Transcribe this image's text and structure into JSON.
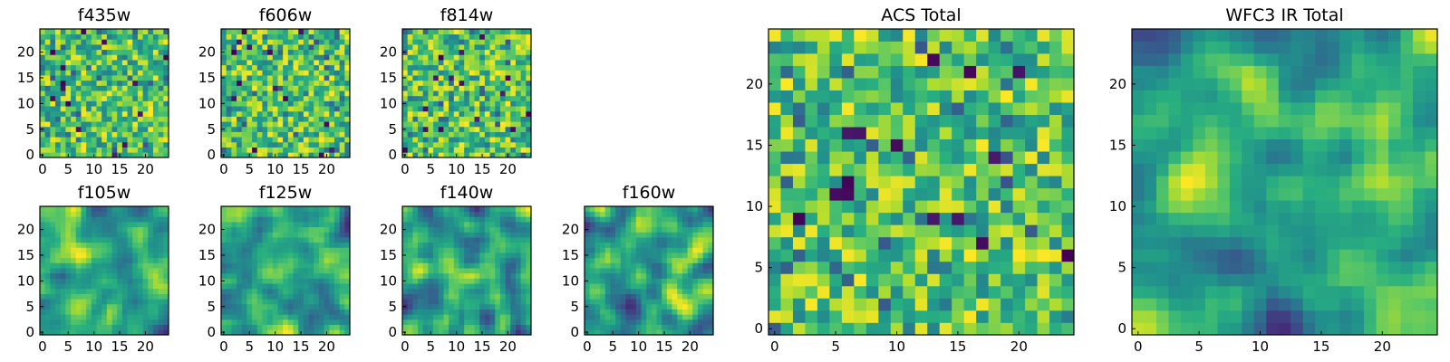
{
  "chart_data": [
    {
      "type": "heatmap",
      "title": "f435w",
      "grid": [
        25,
        25
      ],
      "xlim": [
        0,
        25
      ],
      "ylim": [
        0,
        25
      ],
      "xticks": [
        0,
        5,
        10,
        15,
        20
      ],
      "yticks": [
        0,
        5,
        10,
        15,
        20
      ],
      "xtick_labels": [
        "0",
        "5",
        "10",
        "15",
        "20"
      ],
      "ytick_labels": [
        "0",
        "5",
        "10",
        "15",
        "20"
      ],
      "colormap": "viridis",
      "texture": "speckled",
      "seed": 11
    },
    {
      "type": "heatmap",
      "title": "f606w",
      "grid": [
        25,
        25
      ],
      "xlim": [
        0,
        25
      ],
      "ylim": [
        0,
        25
      ],
      "xticks": [
        0,
        5,
        10,
        15,
        20
      ],
      "yticks": [
        0,
        5,
        10,
        15,
        20
      ],
      "xtick_labels": [
        "0",
        "5",
        "10",
        "15",
        "20"
      ],
      "ytick_labels": [
        "0",
        "5",
        "10",
        "15",
        "20"
      ],
      "colormap": "viridis",
      "texture": "speckled",
      "seed": 23
    },
    {
      "type": "heatmap",
      "title": "f814w",
      "grid": [
        25,
        25
      ],
      "xlim": [
        0,
        25
      ],
      "ylim": [
        0,
        25
      ],
      "xticks": [
        0,
        5,
        10,
        15,
        20
      ],
      "yticks": [
        0,
        5,
        10,
        15,
        20
      ],
      "xtick_labels": [
        "0",
        "5",
        "10",
        "15",
        "20"
      ],
      "ytick_labels": [
        "0",
        "5",
        "10",
        "15",
        "20"
      ],
      "colormap": "viridis",
      "texture": "speckled",
      "seed": 37
    },
    {
      "type": "heatmap",
      "title": "f105w",
      "grid": [
        25,
        25
      ],
      "xlim": [
        0,
        25
      ],
      "ylim": [
        0,
        25
      ],
      "xticks": [
        0,
        5,
        10,
        15,
        20
      ],
      "yticks": [
        0,
        5,
        10,
        15,
        20
      ],
      "xtick_labels": [
        "0",
        "5",
        "10",
        "15",
        "20"
      ],
      "ytick_labels": [
        "0",
        "5",
        "10",
        "15",
        "20"
      ],
      "colormap": "viridis",
      "texture": "smooth",
      "seed": 41
    },
    {
      "type": "heatmap",
      "title": "f125w",
      "grid": [
        25,
        25
      ],
      "xlim": [
        0,
        25
      ],
      "ylim": [
        0,
        25
      ],
      "xticks": [
        0,
        5,
        10,
        15,
        20
      ],
      "yticks": [
        0,
        5,
        10,
        15,
        20
      ],
      "xtick_labels": [
        "0",
        "5",
        "10",
        "15",
        "20"
      ],
      "ytick_labels": [
        "0",
        "5",
        "10",
        "15",
        "20"
      ],
      "colormap": "viridis",
      "texture": "smooth",
      "seed": 53
    },
    {
      "type": "heatmap",
      "title": "f140w",
      "grid": [
        25,
        25
      ],
      "xlim": [
        0,
        25
      ],
      "ylim": [
        0,
        25
      ],
      "xticks": [
        0,
        5,
        10,
        15,
        20
      ],
      "yticks": [
        0,
        5,
        10,
        15,
        20
      ],
      "xtick_labels": [
        "0",
        "5",
        "10",
        "15",
        "20"
      ],
      "ytick_labels": [
        "0",
        "5",
        "10",
        "15",
        "20"
      ],
      "colormap": "viridis",
      "texture": "smooth",
      "seed": 67
    },
    {
      "type": "heatmap",
      "title": "f160w",
      "grid": [
        25,
        25
      ],
      "xlim": [
        0,
        25
      ],
      "ylim": [
        0,
        25
      ],
      "xticks": [
        0,
        5,
        10,
        15,
        20
      ],
      "yticks": [
        0,
        5,
        10,
        15,
        20
      ],
      "xtick_labels": [
        "0",
        "5",
        "10",
        "15",
        "20"
      ],
      "ytick_labels": [
        "0",
        "5",
        "10",
        "15",
        "20"
      ],
      "colormap": "viridis",
      "texture": "smooth",
      "seed": 79
    },
    {
      "type": "heatmap",
      "title": "ACS Total",
      "grid": [
        25,
        25
      ],
      "xlim": [
        0,
        25
      ],
      "ylim": [
        0,
        25
      ],
      "xticks": [
        0,
        5,
        10,
        15,
        20
      ],
      "yticks": [
        0,
        5,
        10,
        15,
        20
      ],
      "xtick_labels": [
        "0",
        "5",
        "10",
        "15",
        "20"
      ],
      "ytick_labels": [
        "0",
        "5",
        "10",
        "15",
        "20"
      ],
      "colormap": "viridis",
      "texture": "speckled",
      "seed": 97
    },
    {
      "type": "heatmap",
      "title": "WFC3 IR Total",
      "grid": [
        25,
        25
      ],
      "xlim": [
        0,
        25
      ],
      "ylim": [
        0,
        25
      ],
      "xticks": [
        0,
        5,
        10,
        15,
        20
      ],
      "yticks": [
        0,
        5,
        10,
        15,
        20
      ],
      "xtick_labels": [
        "0",
        "5",
        "10",
        "15",
        "20"
      ],
      "ytick_labels": [
        "0",
        "5",
        "10",
        "15",
        "20"
      ],
      "colormap": "viridis",
      "texture": "smooth",
      "seed": 109
    }
  ]
}
